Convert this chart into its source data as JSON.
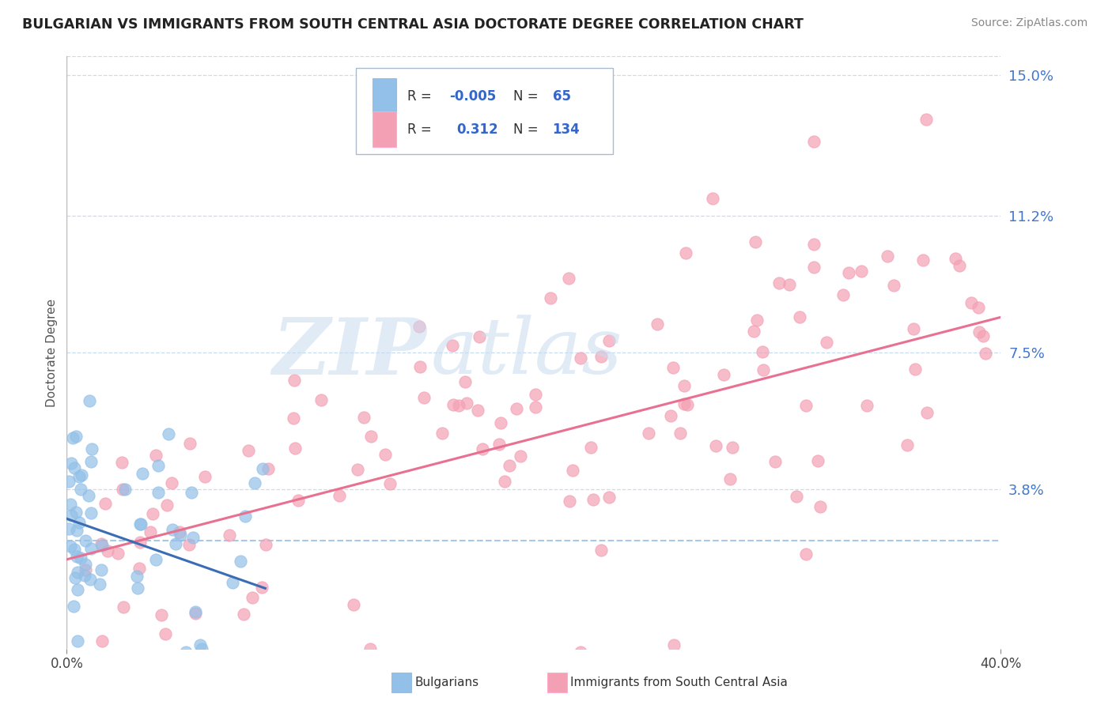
{
  "title": "BULGARIAN VS IMMIGRANTS FROM SOUTH CENTRAL ASIA DOCTORATE DEGREE CORRELATION CHART",
  "source": "Source: ZipAtlas.com",
  "ylabel": "Doctorate Degree",
  "xlim": [
    0.0,
    0.4
  ],
  "ylim": [
    -0.005,
    0.155
  ],
  "yticks": [
    0.038,
    0.075,
    0.112,
    0.15
  ],
  "ytick_labels": [
    "3.8%",
    "7.5%",
    "11.2%",
    "15.0%"
  ],
  "color_blue": "#92C0E8",
  "color_pink": "#F4A0B4",
  "color_blue_line": "#3B6DB5",
  "color_pink_line": "#E87090",
  "color_dashed": "#A8C8E8",
  "color_grid": "#C8DCF0"
}
